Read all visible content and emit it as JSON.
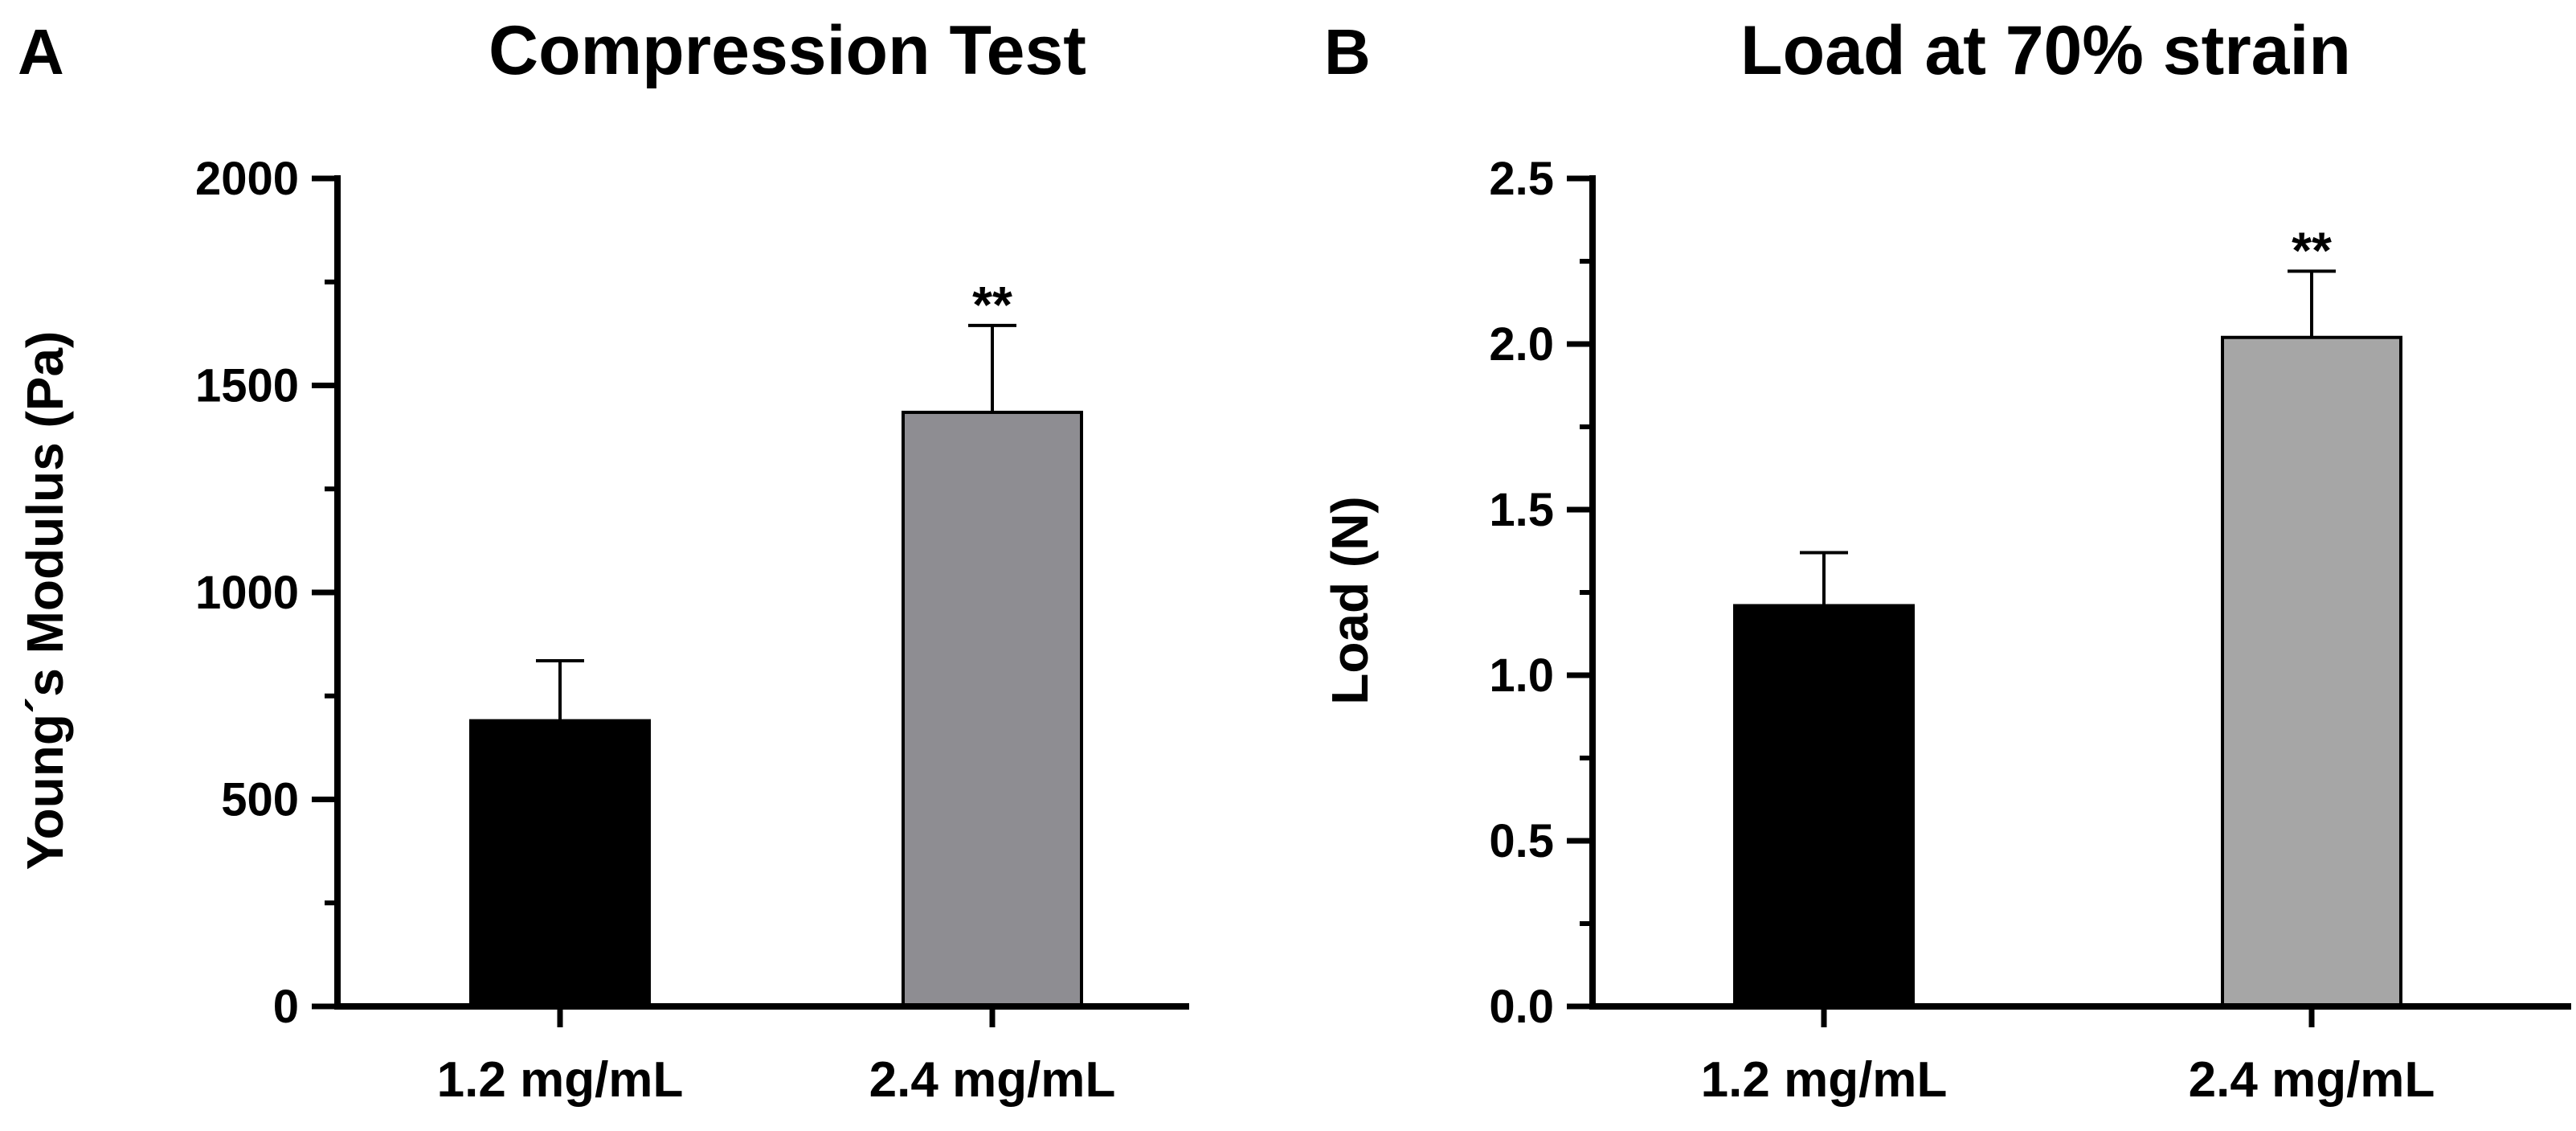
{
  "chart_data": [
    {
      "type": "bar",
      "panel": "A",
      "title": "Compression Test",
      "xlabel": "",
      "ylabel": "Young´s Modulus (Pa)",
      "ylim": [
        0,
        2000
      ],
      "yticks": [
        "0",
        "500",
        "1000",
        "1500",
        "2000"
      ],
      "ytick_values": [
        0,
        500,
        1000,
        1500,
        2000
      ],
      "minor_step": 250,
      "categories": [
        "1.2 mg/mL",
        "2.4 mg/mL"
      ],
      "values": [
        690,
        1435
      ],
      "errors": [
        145,
        210
      ],
      "colors": [
        "#000000",
        "#8e8d92"
      ],
      "significance": [
        "",
        "**"
      ]
    },
    {
      "type": "bar",
      "panel": "B",
      "title": "Load at 70% strain",
      "xlabel": "",
      "ylabel": "Load (N)",
      "ylim": [
        0,
        2.5
      ],
      "yticks": [
        "0.0",
        "0.5",
        "1.0",
        "1.5",
        "2.0",
        "2.5"
      ],
      "ytick_values": [
        0,
        0.5,
        1.0,
        1.5,
        2.0,
        2.5
      ],
      "minor_step": 0.25,
      "categories": [
        "1.2 mg/mL",
        "2.4 mg/mL"
      ],
      "values": [
        1.21,
        2.02
      ],
      "errors": [
        0.16,
        0.2
      ],
      "colors": [
        "#000000",
        "#a6a6a6"
      ],
      "significance": [
        "",
        "**"
      ]
    }
  ]
}
